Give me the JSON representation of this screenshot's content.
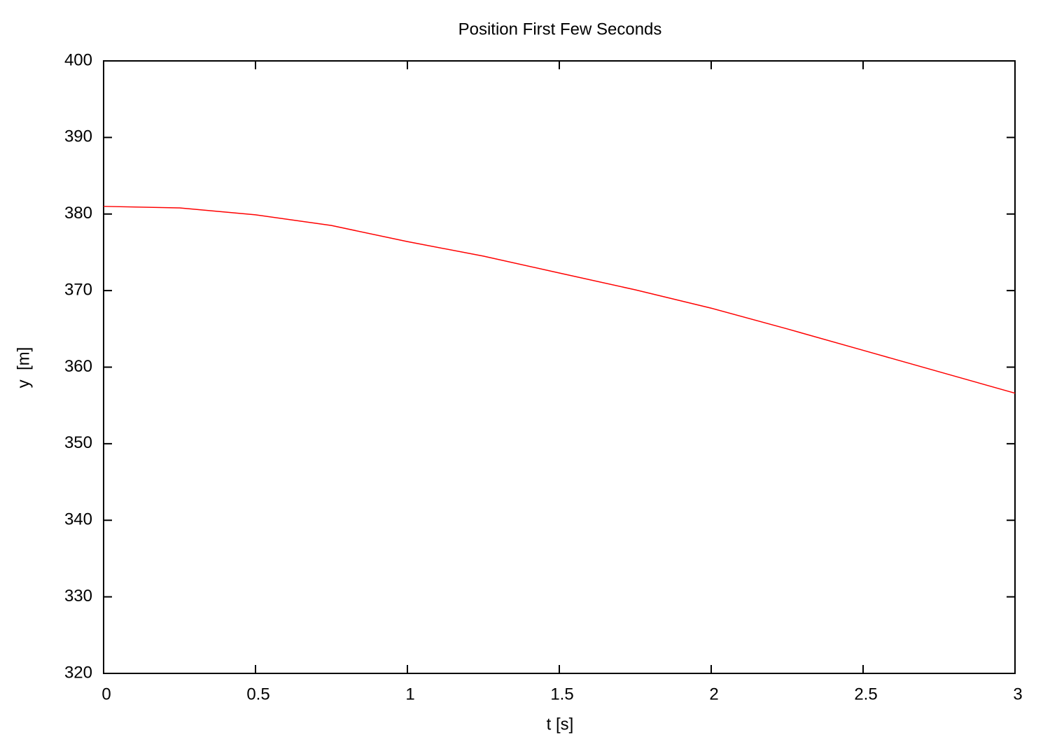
{
  "chart_data": {
    "type": "line",
    "title": "Position First Few Seconds",
    "x_label": "t [s]",
    "y_label": "y  [m]",
    "x": [
      0,
      0.25,
      0.5,
      0.75,
      1,
      1.25,
      1.5,
      1.75,
      2,
      2.25,
      2.5,
      2.75,
      3
    ],
    "values": [
      381.0,
      380.8,
      379.9,
      378.5,
      376.4,
      374.5,
      372.3,
      370.1,
      367.7,
      365.0,
      362.2,
      359.4,
      356.6
    ],
    "color": "#ff0000",
    "xlim": [
      0,
      3
    ],
    "xticks": [
      0,
      0.5,
      1,
      1.5,
      2,
      2.5,
      3
    ],
    "ylim": [
      320,
      400
    ],
    "yticks": [
      320,
      330,
      340,
      350,
      360,
      370,
      380,
      390,
      400
    ],
    "grid": false
  }
}
